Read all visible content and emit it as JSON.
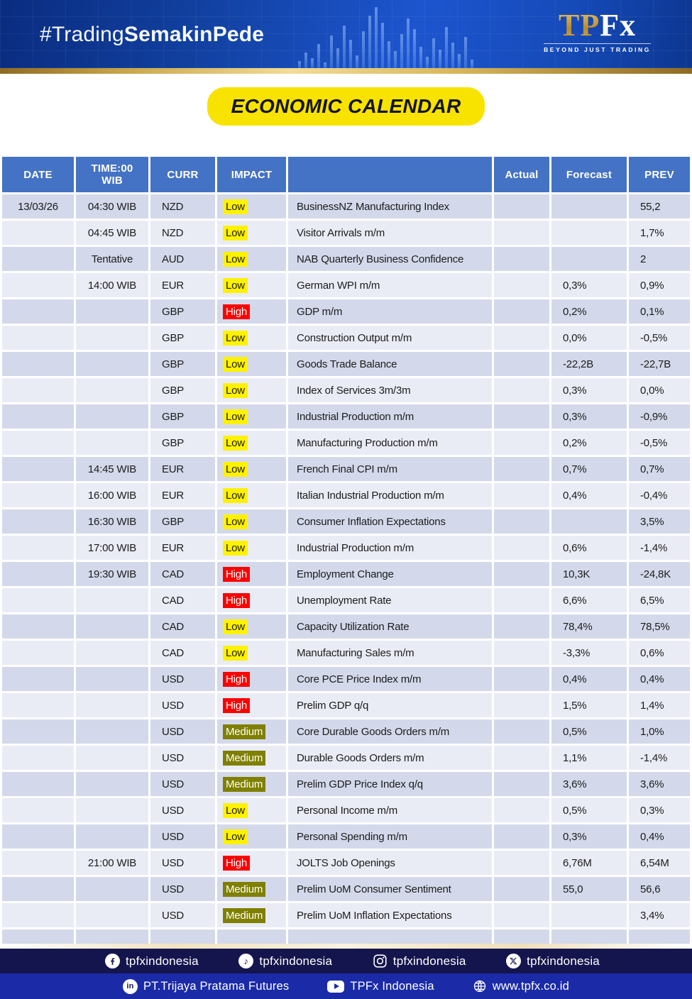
{
  "banner": {
    "hashtag_regular": "#Trading",
    "hashtag_bold": "SemakinPede",
    "logo_tp": "TP",
    "logo_fx": "Fx",
    "logo_tagline": "BEYOND JUST TRADING"
  },
  "title": "ECONOMIC CALENDAR",
  "table": {
    "headers": [
      "DATE",
      "TIME:00\nWIB",
      "CURR",
      "IMPACT",
      "",
      "Actual",
      "Forecast",
      "PREV"
    ],
    "rows": [
      {
        "date": "13/03/26",
        "time": "04:30 WIB",
        "curr": "NZD",
        "impact": "Low",
        "event": "BusinessNZ Manufacturing Index",
        "actual": "",
        "forecast": "",
        "prev": "55,2"
      },
      {
        "date": "",
        "time": "04:45 WIB",
        "curr": "NZD",
        "impact": "Low",
        "event": "Visitor Arrivals m/m",
        "actual": "",
        "forecast": "",
        "prev": "1,7%"
      },
      {
        "date": "",
        "time": "Tentative",
        "curr": "AUD",
        "impact": "Low",
        "event": "NAB Quarterly Business Confidence",
        "actual": "",
        "forecast": "",
        "prev": "2"
      },
      {
        "date": "",
        "time": "14:00 WIB",
        "curr": "EUR",
        "impact": "Low",
        "event": "German WPI m/m",
        "actual": "",
        "forecast": "0,3%",
        "prev": "0,9%"
      },
      {
        "date": "",
        "time": "",
        "curr": "GBP",
        "impact": "High",
        "event": "GDP m/m",
        "actual": "",
        "forecast": "0,2%",
        "prev": "0,1%"
      },
      {
        "date": "",
        "time": "",
        "curr": "GBP",
        "impact": "Low",
        "event": "Construction Output m/m",
        "actual": "",
        "forecast": "0,0%",
        "prev": "-0,5%"
      },
      {
        "date": "",
        "time": "",
        "curr": "GBP",
        "impact": "Low",
        "event": "Goods Trade Balance",
        "actual": "",
        "forecast": "-22,2B",
        "prev": "-22,7B"
      },
      {
        "date": "",
        "time": "",
        "curr": "GBP",
        "impact": "Low",
        "event": "Index of Services 3m/3m",
        "actual": "",
        "forecast": "0,3%",
        "prev": "0,0%"
      },
      {
        "date": "",
        "time": "",
        "curr": "GBP",
        "impact": "Low",
        "event": "Industrial Production m/m",
        "actual": "",
        "forecast": "0,3%",
        "prev": "-0,9%"
      },
      {
        "date": "",
        "time": "",
        "curr": "GBP",
        "impact": "Low",
        "event": "Manufacturing Production m/m",
        "actual": "",
        "forecast": "0,2%",
        "prev": "-0,5%"
      },
      {
        "date": "",
        "time": "14:45 WIB",
        "curr": "EUR",
        "impact": "Low",
        "event": "French Final CPI m/m",
        "actual": "",
        "forecast": "0,7%",
        "prev": "0,7%"
      },
      {
        "date": "",
        "time": "16:00 WIB",
        "curr": "EUR",
        "impact": "Low",
        "event": "Italian Industrial Production m/m",
        "actual": "",
        "forecast": "0,4%",
        "prev": "-0,4%"
      },
      {
        "date": "",
        "time": "16:30 WIB",
        "curr": "GBP",
        "impact": "Low",
        "event": "Consumer Inflation Expectations",
        "actual": "",
        "forecast": "",
        "prev": "3,5%"
      },
      {
        "date": "",
        "time": "17:00 WIB",
        "curr": "EUR",
        "impact": "Low",
        "event": "Industrial Production m/m",
        "actual": "",
        "forecast": "0,6%",
        "prev": "-1,4%"
      },
      {
        "date": "",
        "time": "19:30 WIB",
        "curr": "CAD",
        "impact": "High",
        "event": "Employment Change",
        "actual": "",
        "forecast": "10,3K",
        "prev": "-24,8K"
      },
      {
        "date": "",
        "time": "",
        "curr": "CAD",
        "impact": "High",
        "event": "Unemployment Rate",
        "actual": "",
        "forecast": "6,6%",
        "prev": "6,5%"
      },
      {
        "date": "",
        "time": "",
        "curr": "CAD",
        "impact": "Low",
        "event": "Capacity Utilization Rate",
        "actual": "",
        "forecast": "78,4%",
        "prev": "78,5%"
      },
      {
        "date": "",
        "time": "",
        "curr": "CAD",
        "impact": "Low",
        "event": "Manufacturing Sales m/m",
        "actual": "",
        "forecast": "-3,3%",
        "prev": "0,6%"
      },
      {
        "date": "",
        "time": "",
        "curr": "USD",
        "impact": "High",
        "event": "Core PCE Price Index m/m",
        "actual": "",
        "forecast": "0,4%",
        "prev": "0,4%"
      },
      {
        "date": "",
        "time": "",
        "curr": "USD",
        "impact": "High",
        "event": "Prelim GDP q/q",
        "actual": "",
        "forecast": "1,5%",
        "prev": "1,4%"
      },
      {
        "date": "",
        "time": "",
        "curr": "USD",
        "impact": "Medium",
        "event": "Core Durable Goods Orders m/m",
        "actual": "",
        "forecast": "0,5%",
        "prev": "1,0%"
      },
      {
        "date": "",
        "time": "",
        "curr": "USD",
        "impact": "Medium",
        "event": "Durable Goods Orders m/m",
        "actual": "",
        "forecast": "1,1%",
        "prev": "-1,4%"
      },
      {
        "date": "",
        "time": "",
        "curr": "USD",
        "impact": "Medium",
        "event": "Prelim GDP Price Index q/q",
        "actual": "",
        "forecast": "3,6%",
        "prev": "3,6%"
      },
      {
        "date": "",
        "time": "",
        "curr": "USD",
        "impact": "Low",
        "event": "Personal Income m/m",
        "actual": "",
        "forecast": "0,5%",
        "prev": "0,3%"
      },
      {
        "date": "",
        "time": "",
        "curr": "USD",
        "impact": "Low",
        "event": "Personal Spending m/m",
        "actual": "",
        "forecast": "0,3%",
        "prev": "0,4%"
      },
      {
        "date": "",
        "time": "21:00 WIB",
        "curr": "USD",
        "impact": "High",
        "event": "JOLTS Job Openings",
        "actual": "",
        "forecast": "6,76M",
        "prev": "6,54M"
      },
      {
        "date": "",
        "time": "",
        "curr": "USD",
        "impact": "Medium",
        "event": "Prelim UoM Consumer Sentiment",
        "actual": "",
        "forecast": "55,0",
        "prev": "56,6"
      },
      {
        "date": "",
        "time": "",
        "curr": "USD",
        "impact": "Medium",
        "event": "Prelim UoM Inflation Expectations",
        "actual": "",
        "forecast": "",
        "prev": "3,4%"
      },
      {
        "date": "",
        "time": "",
        "curr": "",
        "impact": "",
        "event": "",
        "actual": "",
        "forecast": "",
        "prev": ""
      }
    ]
  },
  "footer": {
    "social": [
      {
        "icon": "facebook-icon",
        "label": "tpfxindonesia"
      },
      {
        "icon": "tiktok-icon",
        "label": "tpfxindonesia"
      },
      {
        "icon": "instagram-icon",
        "label": "tpfxindonesia"
      },
      {
        "icon": "x-icon",
        "label": "tpfxindonesia"
      }
    ],
    "company": [
      {
        "icon": "linkedin-icon",
        "label": "PT.Trijaya Pratama Futures"
      },
      {
        "icon": "youtube-icon",
        "label": "TPFx Indonesia"
      },
      {
        "icon": "globe-icon",
        "label": "www.tpfx.co.id"
      }
    ]
  },
  "colors": {
    "header_blue": "#4472C4",
    "row_dark": "#D3D9EA",
    "row_light": "#EAECF5",
    "impact_low_bg": "#FFF200",
    "impact_high_bg": "#FF0000",
    "impact_medium_bg": "#7F7F00",
    "banner_blue": "#1d55cf",
    "footer_navy": "#15154e",
    "footer_blue": "#1b2ba8",
    "gold": "#d9b85c",
    "title_yellow": "#f8e300"
  }
}
